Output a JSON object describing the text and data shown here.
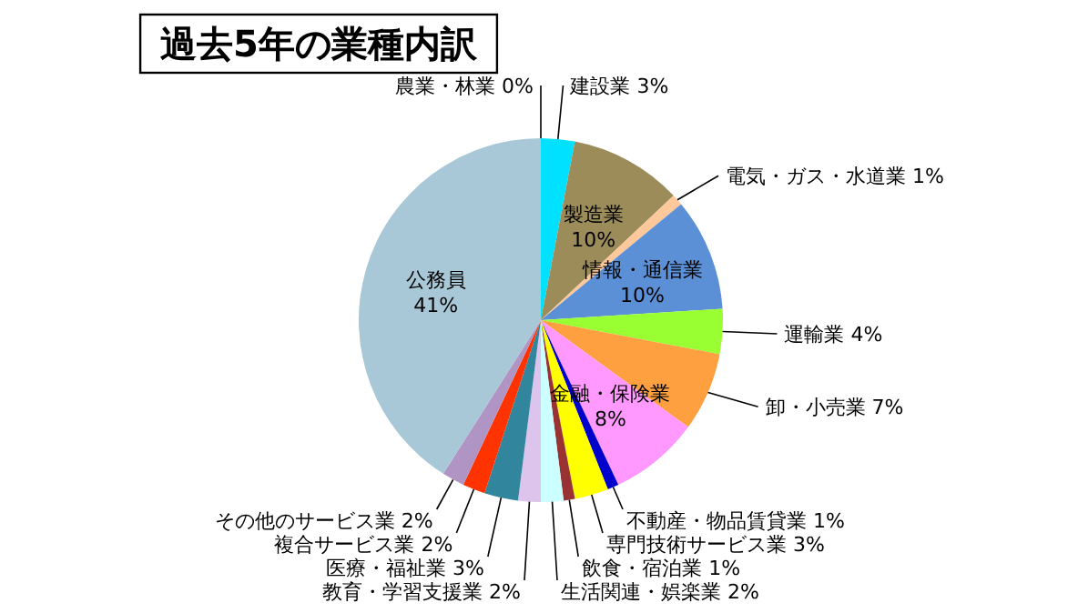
{
  "chart_data": {
    "type": "pie",
    "title": "過去5年の業種内訳",
    "categories": [
      "農業・林業",
      "建設業",
      "製造業",
      "電気・ガス・水道業",
      "情報・通信業",
      "運輸業",
      "卸・小売業",
      "金融・保険業",
      "不動産・物品賃貸業",
      "専門技術サービス業",
      "飲食・宿泊業",
      "生活関連・娯楽業",
      "教育・学習支援業",
      "医療・福祉業",
      "複合サービス業",
      "その他のサービス業",
      "公務員"
    ],
    "values": [
      0,
      3,
      10,
      1,
      10,
      4,
      7,
      8,
      1,
      3,
      1,
      2,
      2,
      3,
      2,
      2,
      41
    ],
    "value_labels": [
      "0%",
      "3%",
      "10%",
      "1%",
      "10%",
      "4%",
      "7%",
      "8%",
      "1%",
      "3%",
      "1%",
      "2%",
      "2%",
      "3%",
      "2%",
      "2%",
      "41%"
    ],
    "colors": [
      "#1f3864",
      "#00e0ff",
      "#9c8c5a",
      "#ffc89a",
      "#5b8fd6",
      "#99ff33",
      "#ffa040",
      "#ff99ff",
      "#0000cc",
      "#ffff00",
      "#993333",
      "#ccffff",
      "#dcc4ec",
      "#31859c",
      "#ff3300",
      "#b094c4",
      "#a8c8d8"
    ]
  }
}
